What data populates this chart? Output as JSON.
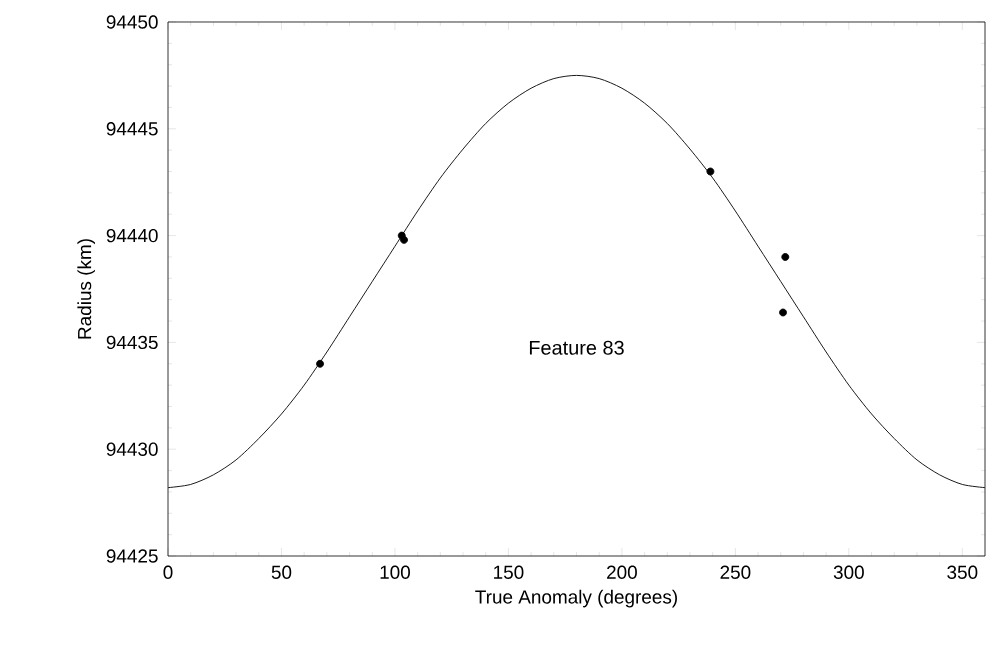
{
  "chart_data": {
    "type": "scatter",
    "xlabel": "True Anomaly (degrees)",
    "ylabel": "Radius (km)",
    "annotations": [
      "Feature 83"
    ],
    "xlim": [
      0,
      360
    ],
    "ylim": [
      94425,
      94450
    ],
    "xticks": [
      0,
      50,
      100,
      150,
      200,
      250,
      300,
      350
    ],
    "yticks": [
      94425,
      94430,
      94435,
      94440,
      94445,
      94450
    ],
    "series": [
      {
        "type": "line",
        "color": "#000000",
        "marker": "none",
        "line_style": "solid",
        "x": [
          0,
          10,
          20,
          30,
          40,
          50,
          60,
          70,
          80,
          90,
          100,
          110,
          120,
          130,
          140,
          150,
          160,
          170,
          180,
          190,
          200,
          210,
          220,
          230,
          240,
          250,
          260,
          270,
          280,
          290,
          300,
          310,
          320,
          330,
          340,
          350,
          360
        ],
        "values": [
          94428.2,
          94428.35,
          94428.8,
          94429.5,
          94430.5,
          94431.65,
          94433.0,
          94434.55,
          94436.2,
          94437.85,
          94439.5,
          94441.15,
          94442.7,
          94444.05,
          94445.25,
          94446.2,
          94446.9,
          94447.35,
          94447.5,
          94447.35,
          94446.9,
          94446.2,
          94445.25,
          94444.05,
          94442.7,
          94441.15,
          94439.5,
          94437.85,
          94436.2,
          94434.55,
          94433.0,
          94431.65,
          94430.5,
          94429.5,
          94428.8,
          94428.35,
          94428.2
        ]
      },
      {
        "color": "#000000",
        "marker": "circle",
        "x": [
          67,
          103,
          104,
          239,
          272,
          271
        ],
        "values": [
          94434.0,
          94440.0,
          94439.8,
          94443.0,
          94439.0,
          94436.4
        ]
      }
    ]
  }
}
